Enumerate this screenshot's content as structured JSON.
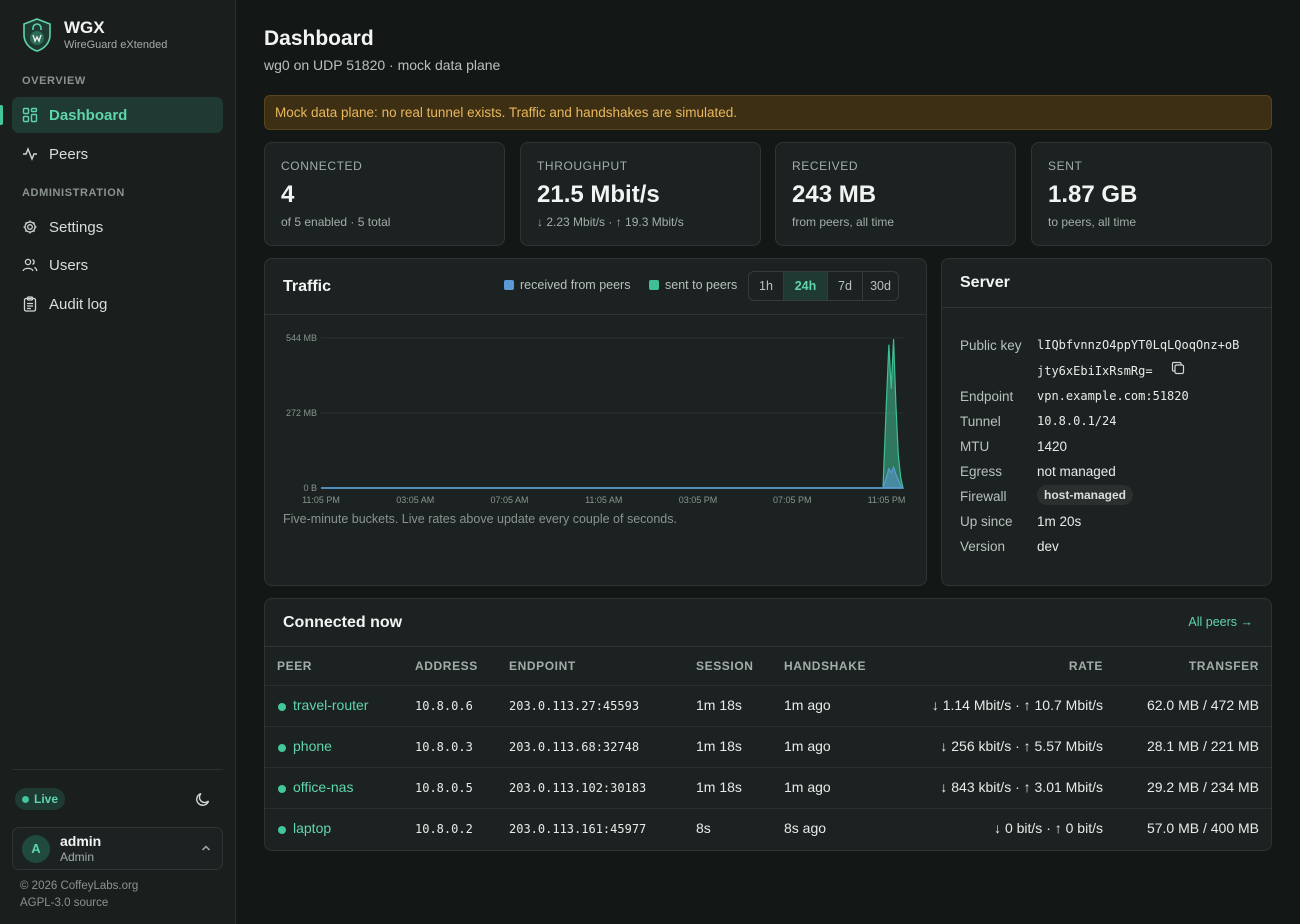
{
  "brand": {
    "title": "WGX",
    "subtitle": "WireGuard eXtended"
  },
  "nav": {
    "section_overview": "OVERVIEW",
    "section_admin": "ADMINISTRATION",
    "items": [
      {
        "label": "Dashboard",
        "icon": "dashboard-icon"
      },
      {
        "label": "Peers",
        "icon": "activity-icon"
      },
      {
        "label": "Settings",
        "icon": "gear-icon"
      },
      {
        "label": "Users",
        "icon": "users-icon"
      },
      {
        "label": "Audit log",
        "icon": "clipboard-icon"
      }
    ]
  },
  "status": {
    "live_label": "Live"
  },
  "user": {
    "initial": "A",
    "name": "admin",
    "role": "Admin"
  },
  "footer": {
    "copyright": "© 2026 CoffeyLabs.org",
    "source": "AGPL-3.0 source"
  },
  "header": {
    "title": "Dashboard",
    "subtitle": "wg0 on UDP 51820 · mock data plane"
  },
  "banner": "Mock data plane: no real tunnel exists. Traffic and handshakes are simulated.",
  "stats": [
    {
      "label": "CONNECTED",
      "value": "4",
      "sub": "of 5 enabled · 5 total"
    },
    {
      "label": "THROUGHPUT",
      "value": "21.5 Mbit/s",
      "sub": "↓ 2.23 Mbit/s · ↑ 19.3 Mbit/s"
    },
    {
      "label": "RECEIVED",
      "value": "243 MB",
      "sub": "from peers, all time"
    },
    {
      "label": "SENT",
      "value": "1.87 GB",
      "sub": "to peers, all time"
    }
  ],
  "traffic": {
    "title": "Traffic",
    "legend_received": "received from peers",
    "legend_sent": "sent to peers",
    "ranges": [
      "1h",
      "24h",
      "7d",
      "30d"
    ],
    "active_range": "24h",
    "note": "Five-minute buckets. Live rates above update every couple of seconds."
  },
  "chart_data": {
    "type": "area",
    "y_ticks": [
      "544 MB",
      "272 MB",
      "0 B"
    ],
    "ylim": [
      0,
      544
    ],
    "x_ticks": [
      "11:05 PM",
      "03:05 AM",
      "07:05 AM",
      "11:05 AM",
      "03:05 PM",
      "07:05 PM",
      "11:05 PM"
    ],
    "x_hours": [
      0,
      4,
      8,
      12,
      16,
      20,
      24
    ],
    "xlim": [
      0,
      24.7
    ],
    "grid": true,
    "series": [
      {
        "name": "received from peers",
        "color": "#5b9bd5",
        "x": [
          0,
          23.85,
          24.0,
          24.1,
          24.2,
          24.3,
          24.4,
          24.5,
          24.6,
          24.7
        ],
        "y": [
          0,
          0,
          40,
          70,
          55,
          75,
          50,
          30,
          10,
          0
        ]
      },
      {
        "name": "sent to peers",
        "color": "#3fbf94",
        "x": [
          0,
          23.85,
          24.0,
          24.1,
          24.2,
          24.3,
          24.4,
          24.5,
          24.6,
          24.7
        ],
        "y": [
          0,
          0,
          320,
          520,
          360,
          540,
          300,
          120,
          40,
          0
        ]
      }
    ]
  },
  "server": {
    "title": "Server",
    "rows": [
      {
        "key": "Public key",
        "value": "lIQbfvnnzO4ppYT0LqLQoqOnz+oB",
        "value2": "jty6xEbiIxRsmRg="
      },
      {
        "key": "Endpoint",
        "value": "vpn.example.com:51820"
      },
      {
        "key": "Tunnel",
        "value": "10.8.0.1/24"
      },
      {
        "key": "MTU",
        "value": "1420"
      },
      {
        "key": "Egress",
        "value": "not managed"
      },
      {
        "key": "Firewall",
        "value": "host-managed"
      },
      {
        "key": "Up since",
        "value": "1m 20s"
      },
      {
        "key": "Version",
        "value": "dev"
      }
    ]
  },
  "connected": {
    "title": "Connected now",
    "all_peers": "All peers →",
    "columns": [
      "PEER",
      "ADDRESS",
      "ENDPOINT",
      "SESSION",
      "HANDSHAKE",
      "RATE",
      "TRANSFER"
    ],
    "rows": [
      {
        "peer": "travel-router",
        "address": "10.8.0.6",
        "endpoint": "203.0.113.27:45593",
        "session": "1m 18s",
        "handshake": "1m ago",
        "rate": "↓ 1.14 Mbit/s · ↑ 10.7 Mbit/s",
        "transfer": "62.0 MB / 472 MB"
      },
      {
        "peer": "phone",
        "address": "10.8.0.3",
        "endpoint": "203.0.113.68:32748",
        "session": "1m 18s",
        "handshake": "1m ago",
        "rate": "↓ 256 kbit/s · ↑ 5.57 Mbit/s",
        "transfer": "28.1 MB / 221 MB"
      },
      {
        "peer": "office-nas",
        "address": "10.8.0.5",
        "endpoint": "203.0.113.102:30183",
        "session": "1m 18s",
        "handshake": "1m ago",
        "rate": "↓ 843 kbit/s · ↑ 3.01 Mbit/s",
        "transfer": "29.2 MB / 234 MB"
      },
      {
        "peer": "laptop",
        "address": "10.8.0.2",
        "endpoint": "203.0.113.161:45977",
        "session": "8s",
        "handshake": "8s ago",
        "rate": "↓ 0 bit/s · ↑ 0 bit/s",
        "transfer": "57.0 MB / 400 MB"
      }
    ]
  }
}
